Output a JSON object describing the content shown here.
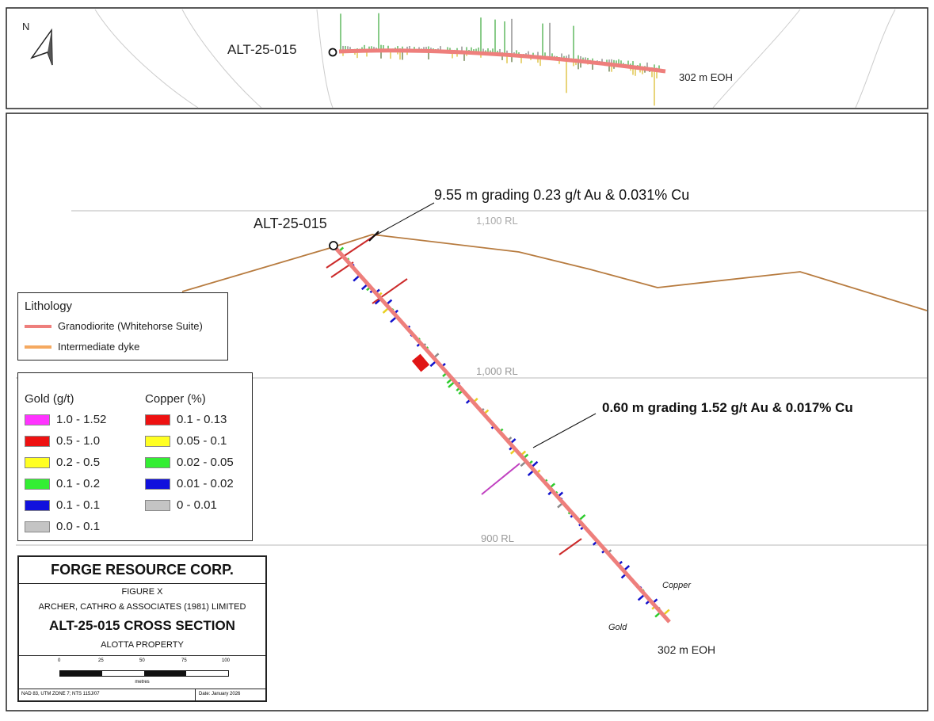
{
  "top_panel": {
    "north_label": "N",
    "hole_label": "ALT-25-015",
    "eoh_label": "302 m EOH"
  },
  "section": {
    "hole_label": "ALT-25-015",
    "eoh_label": "302 m EOH",
    "rl_labels": [
      "1,100 RL",
      "1,000 RL",
      "900 RL"
    ],
    "annotation_1": "9.55 m grading 0.23 g/t Au & 0.031% Cu",
    "annotation_2": "0.60 m grading 1.52 g/t Au & 0.017% Cu",
    "copper_side_label": "Copper",
    "gold_side_label": "Gold"
  },
  "lithology_legend": {
    "title": "Lithology",
    "items": [
      {
        "label": "Granodiorite (Whitehorse Suite)",
        "color": "#ee7f7c"
      },
      {
        "label": "Intermediate dyke",
        "color": "#f5a960"
      }
    ]
  },
  "assay_legend": {
    "gold_title": "Gold (g/t)",
    "copper_title": "Copper (%)",
    "gold": [
      {
        "label": "1.0 - 1.52",
        "color": "#ff33ff"
      },
      {
        "label": "0.5 - 1.0",
        "color": "#ee1111"
      },
      {
        "label": "0.2 - 0.5",
        "color": "#ffff22"
      },
      {
        "label": "0.1 - 0.2",
        "color": "#33ee33"
      },
      {
        "label": "0.1 - 0.1",
        "color": "#1111dd"
      },
      {
        "label": "0.0 - 0.1",
        "color": "#c4c4c4"
      }
    ],
    "copper": [
      {
        "label": "0.1 - 0.13",
        "color": "#ee1111"
      },
      {
        "label": "0.05 - 0.1",
        "color": "#ffff22"
      },
      {
        "label": "0.02 - 0.05",
        "color": "#33ee33"
      },
      {
        "label": "0.01 - 0.02",
        "color": "#1111dd"
      },
      {
        "label": "0 - 0.01",
        "color": "#c4c4c4"
      }
    ]
  },
  "title_block": {
    "company": "FORGE RESOURCE CORP.",
    "figure": "FIGURE X",
    "consultant": "ARCHER, CATHRO & ASSOCIATES (1981) LIMITED",
    "title": "ALT-25-015 CROSS SECTION",
    "property": "ALOTTA PROPERTY",
    "scale_ticks": [
      "0",
      "25",
      "50",
      "75",
      "100"
    ],
    "scale_unit": "metres",
    "datum": "NAD 83, UTM ZONE 7; NTS 115J/07",
    "date": "Date: January 2026"
  }
}
